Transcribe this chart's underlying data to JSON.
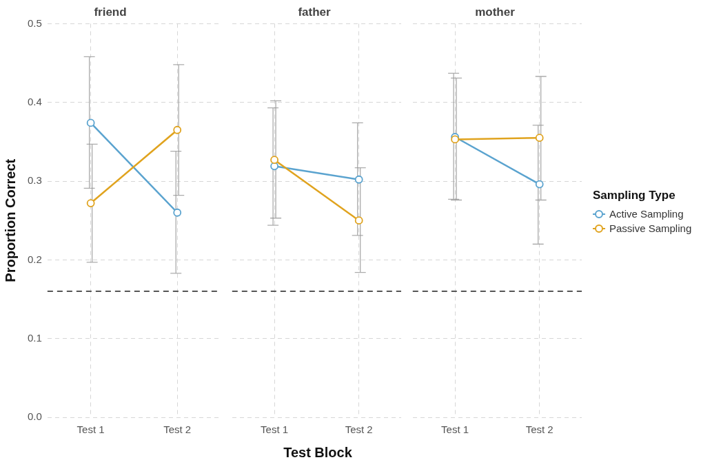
{
  "chart_data": [
    {
      "type": "line",
      "title": "friend",
      "ylabel": "Proportion Correct",
      "categories": [
        "Test 1",
        "Test 2"
      ],
      "ylim": [
        0,
        0.5
      ],
      "yticks": [
        {
          "value": 0,
          "label": "0.0"
        },
        0.1,
        0.2,
        0.3,
        0.4,
        0.5
      ],
      "grid": true,
      "marker": "circle",
      "line_style": "solid",
      "legend": false,
      "series": [
        {
          "color": "#5aa3cf",
          "values": [
            0.374,
            0.26
          ],
          "errors": [
            [
              0.291,
              0.458
            ],
            [
              0.183,
              0.338
            ]
          ]
        },
        {
          "color": "#e0a31e",
          "values": [
            0.272,
            0.365
          ],
          "errors": [
            [
              0.197,
              0.347
            ],
            [
              0.282,
              0.448
            ]
          ]
        }
      ],
      "ref_lines": [
        {
          "axis": "y",
          "value": 0.16,
          "color": "#555555",
          "line_style": "dashed"
        }
      ]
    },
    {
      "type": "line",
      "title": "father",
      "xlabel": "Test Block",
      "categories": [
        "Test 1",
        "Test 2"
      ],
      "ylim": [
        0,
        0.5
      ],
      "yticks": [
        0,
        0.1,
        0.2,
        0.3,
        0.4,
        0.5
      ],
      "tick_labels": "x",
      "grid": true,
      "marker": "circle",
      "line_style": "solid",
      "legend": false,
      "series": [
        {
          "color": "#5aa3cf",
          "values": [
            0.319,
            0.302
          ],
          "errors": [
            [
              0.244,
              0.393
            ],
            [
              0.231,
              0.374
            ]
          ]
        },
        {
          "color": "#e0a31e",
          "values": [
            0.327,
            0.25
          ],
          "errors": [
            [
              0.253,
              0.402
            ],
            [
              0.184,
              0.317
            ]
          ]
        }
      ],
      "ref_lines": [
        {
          "axis": "y",
          "value": 0.16,
          "color": "#555555",
          "line_style": "dashed"
        }
      ]
    },
    {
      "type": "line",
      "title": "mother",
      "legend_title": "Sampling Type",
      "categories": [
        "Test 1",
        "Test 2"
      ],
      "ylim": [
        0,
        0.5
      ],
      "yticks": [
        0,
        0.1,
        0.2,
        0.3,
        0.4,
        0.5
      ],
      "tick_labels": "x",
      "grid": true,
      "marker": "circle",
      "line_style": "solid",
      "legend": "right",
      "series": [
        {
          "name": "Active Sampling",
          "color": "#5aa3cf",
          "values": [
            0.356,
            0.296
          ],
          "errors": [
            [
              0.277,
              0.437
            ],
            [
              0.22,
              0.371
            ]
          ]
        },
        {
          "name": "Passive Sampling",
          "color": "#e0a31e",
          "values": [
            0.353,
            0.355
          ],
          "errors": [
            [
              0.276,
              0.431
            ],
            [
              0.276,
              0.433
            ]
          ]
        }
      ],
      "ref_lines": [
        {
          "axis": "y",
          "value": 0.16,
          "color": "#555555",
          "line_style": "dashed"
        }
      ]
    }
  ]
}
